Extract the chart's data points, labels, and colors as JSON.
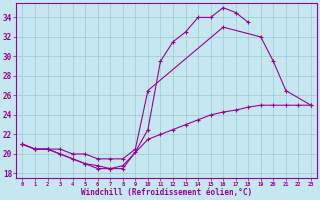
{
  "xlabel": "Windchill (Refroidissement éolien,°C)",
  "bg_color": "#c5e8f0",
  "grid_color": "#a0c8d8",
  "line_color": "#990099",
  "xlim": [
    -0.5,
    23.5
  ],
  "ylim": [
    17.5,
    35.5
  ],
  "yticks": [
    18,
    20,
    22,
    24,
    26,
    28,
    30,
    32,
    34
  ],
  "xticks": [
    0,
    1,
    2,
    3,
    4,
    5,
    6,
    7,
    8,
    9,
    10,
    11,
    12,
    13,
    14,
    15,
    16,
    17,
    18,
    19,
    20,
    21,
    22,
    23
  ],
  "line1_x": [
    0,
    1,
    2,
    3,
    4,
    5,
    6,
    7,
    8,
    9,
    10,
    11,
    12,
    13,
    14,
    15,
    16,
    17,
    18
  ],
  "line1_y": [
    21.0,
    20.5,
    20.5,
    20.0,
    19.5,
    19.0,
    18.5,
    18.5,
    18.5,
    20.2,
    22.5,
    29.5,
    31.5,
    32.5,
    34.0,
    34.0,
    35.0,
    34.5,
    33.5
  ],
  "line2_x": [
    0,
    1,
    2,
    3,
    4,
    5,
    6,
    7,
    8,
    10,
    11,
    12,
    13,
    14,
    15,
    16,
    17,
    18,
    19,
    20,
    21,
    22,
    23
  ],
  "line2_y": [
    21.0,
    20.5,
    20.5,
    20.0,
    19.5,
    19.0,
    18.8,
    18.5,
    18.8,
    21.5,
    22.0,
    22.5,
    23.0,
    23.5,
    24.0,
    24.3,
    24.5,
    24.8,
    25.0,
    25.0,
    25.0,
    25.0,
    25.0
  ],
  "line3_x": [
    0,
    1,
    2,
    3,
    4,
    5,
    6,
    7,
    8,
    9,
    10,
    16,
    19,
    20,
    21,
    23
  ],
  "line3_y": [
    21.0,
    20.5,
    20.5,
    20.5,
    20.0,
    20.0,
    19.5,
    19.5,
    19.5,
    20.5,
    26.5,
    33.0,
    32.0,
    29.5,
    26.5,
    25.0
  ]
}
